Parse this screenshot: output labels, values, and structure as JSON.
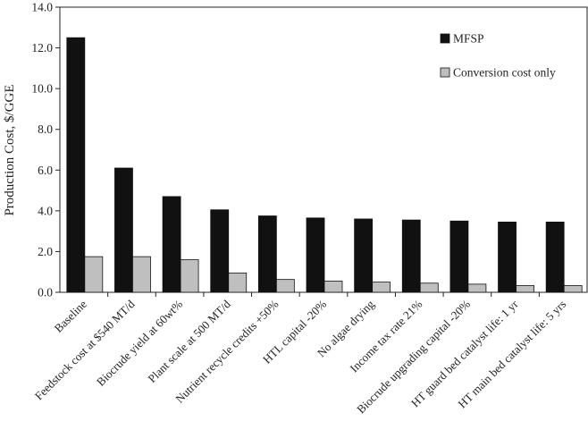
{
  "chart_data": {
    "type": "bar",
    "ylabel": "Production Cost, $/GGE",
    "xlabel": "",
    "ylim": [
      0,
      14
    ],
    "yticks": [
      "0.0",
      "2.0",
      "4.0",
      "6.0",
      "8.0",
      "10.0",
      "12.0",
      "14.0"
    ],
    "grid": false,
    "legend_position": "top-right",
    "categories": [
      "Baseline",
      "Feedstock cost at $540 MT/d",
      "Biocrude yield at 60wt%",
      "Plant scale at 500 MT/d",
      "Nutrient recycle credits +50%",
      "HTL capital -20%",
      "No algae drying",
      "Income tax rate 21%",
      "Biocrude upgrading capital -20%",
      "HT guard bed catalyst life: 1 yr",
      "HT main bed catalyst life: 5 yrs"
    ],
    "series": [
      {
        "name": "MFSP",
        "color": "#111111",
        "values": [
          12.5,
          6.1,
          4.7,
          4.05,
          3.75,
          3.65,
          3.6,
          3.55,
          3.5,
          3.45,
          3.45
        ]
      },
      {
        "name": "Conversion cost only",
        "color": "#bfbfbf",
        "values": [
          1.75,
          1.75,
          1.6,
          0.95,
          0.63,
          0.55,
          0.5,
          0.45,
          0.4,
          0.33,
          0.33
        ]
      }
    ]
  }
}
